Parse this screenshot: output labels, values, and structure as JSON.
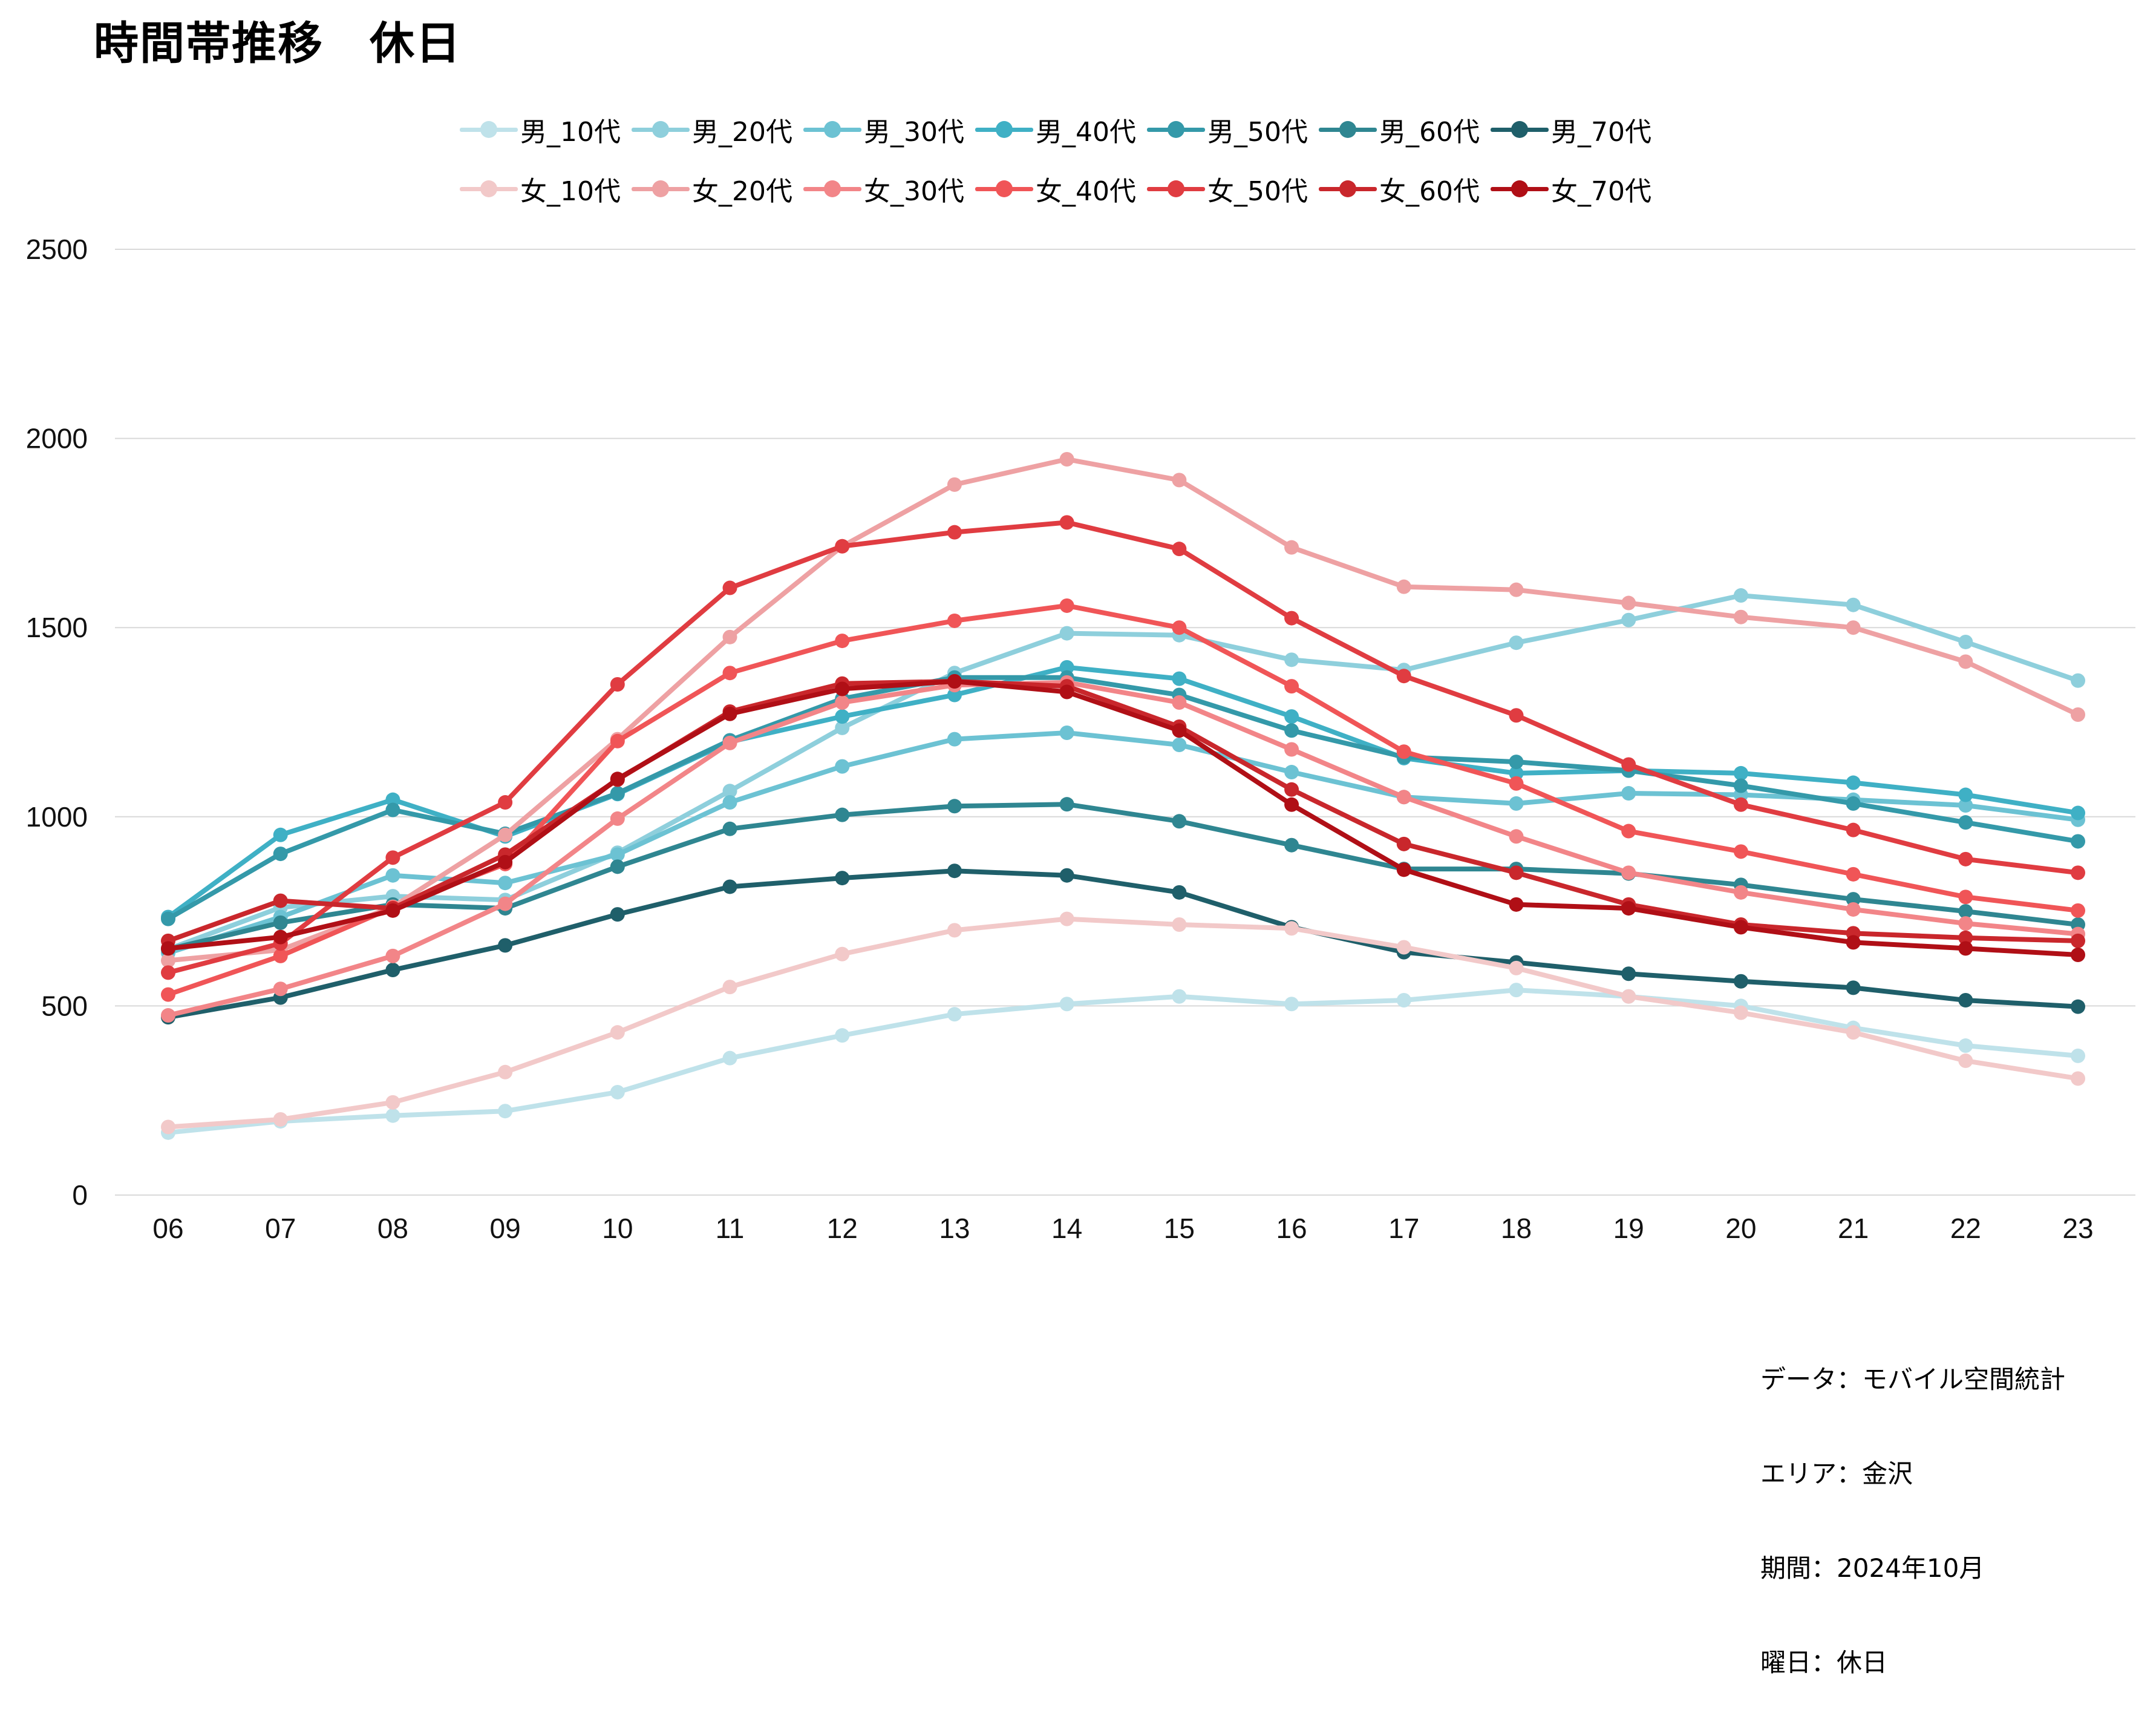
{
  "chart_data": {
    "type": "line",
    "title": "時間帯推移　休日",
    "xlabel": "",
    "ylabel": "",
    "x": [
      "06",
      "07",
      "08",
      "09",
      "10",
      "11",
      "12",
      "13",
      "14",
      "15",
      "16",
      "17",
      "18",
      "19",
      "20",
      "21",
      "22",
      "23"
    ],
    "ylim": [
      0,
      2500
    ],
    "yticks": [
      0,
      500,
      1000,
      1500,
      2000,
      2500
    ],
    "grid": "horizontal",
    "legend_position": "top-center",
    "series": [
      {
        "name": "男_10代",
        "color": "#bfe2ea",
        "values": [
          165,
          195,
          210,
          222,
          272,
          362,
          422,
          478,
          505,
          525,
          505,
          515,
          542,
          525,
          500,
          442,
          395,
          368
        ]
      },
      {
        "name": "男_20代",
        "color": "#8ecfdc",
        "values": [
          650,
          760,
          790,
          780,
          905,
          1068,
          1235,
          1380,
          1485,
          1480,
          1415,
          1388,
          1460,
          1520,
          1585,
          1560,
          1462,
          1360
        ]
      },
      {
        "name": "男_30代",
        "color": "#6cc2d3",
        "values": [
          640,
          735,
          845,
          825,
          900,
          1038,
          1133,
          1205,
          1222,
          1190,
          1118,
          1052,
          1035,
          1062,
          1058,
          1045,
          1030,
          992
        ]
      },
      {
        "name": "男_40代",
        "color": "#3fb0c5",
        "values": [
          735,
          952,
          1045,
          948,
          1060,
          1198,
          1265,
          1322,
          1395,
          1365,
          1265,
          1155,
          1115,
          1122,
          1115,
          1090,
          1058,
          1010
        ]
      },
      {
        "name": "男_50代",
        "color": "#3499a9",
        "values": [
          730,
          902,
          1018,
          955,
          1062,
          1202,
          1312,
          1368,
          1368,
          1322,
          1228,
          1158,
          1145,
          1122,
          1082,
          1035,
          985,
          935
        ]
      },
      {
        "name": "男_60代",
        "color": "#2f8691",
        "values": [
          650,
          720,
          768,
          758,
          868,
          968,
          1005,
          1028,
          1033,
          988,
          925,
          862,
          862,
          850,
          820,
          782,
          750,
          715
        ]
      },
      {
        "name": "男_70代",
        "color": "#1f5f6a",
        "values": [
          470,
          522,
          595,
          660,
          742,
          815,
          838,
          857,
          845,
          800,
          708,
          642,
          615,
          585,
          565,
          548,
          515,
          498
        ]
      },
      {
        "name": "女_10代",
        "color": "#f2c9c9",
        "values": [
          180,
          200,
          245,
          325,
          430,
          550,
          637,
          700,
          730,
          715,
          705,
          655,
          600,
          525,
          482,
          430,
          355,
          308
        ]
      },
      {
        "name": "女_20代",
        "color": "#eea1a3",
        "values": [
          620,
          648,
          762,
          952,
          1205,
          1475,
          1715,
          1878,
          1945,
          1890,
          1712,
          1608,
          1600,
          1565,
          1528,
          1500,
          1410,
          1270
        ]
      },
      {
        "name": "女_30代",
        "color": "#f28588",
        "values": [
          475,
          545,
          632,
          770,
          995,
          1195,
          1302,
          1348,
          1355,
          1302,
          1178,
          1052,
          948,
          852,
          800,
          755,
          718,
          690
        ]
      },
      {
        "name": "女_40代",
        "color": "#f05557",
        "values": [
          530,
          632,
          760,
          875,
          1200,
          1380,
          1465,
          1518,
          1558,
          1500,
          1345,
          1172,
          1088,
          962,
          908,
          848,
          788,
          752
        ]
      },
      {
        "name": "女_50代",
        "color": "#e03c41",
        "values": [
          588,
          665,
          892,
          1038,
          1350,
          1605,
          1715,
          1752,
          1778,
          1708,
          1525,
          1372,
          1268,
          1138,
          1032,
          965,
          888,
          852
        ]
      },
      {
        "name": "女_60代",
        "color": "#c9272c",
        "values": [
          672,
          778,
          758,
          900,
          1098,
          1278,
          1352,
          1358,
          1345,
          1238,
          1072,
          928,
          852,
          768,
          715,
          692,
          680,
          672
        ]
      },
      {
        "name": "女_70代",
        "color": "#b00f16",
        "values": [
          652,
          682,
          752,
          880,
          1100,
          1272,
          1338,
          1358,
          1330,
          1228,
          1032,
          860,
          768,
          758,
          708,
          668,
          652,
          635
        ]
      }
    ],
    "annotation": [
      "データ：モバイル空間統計",
      "エリア：金沢",
      "期間：2024年10月",
      "曜日：休日"
    ]
  }
}
